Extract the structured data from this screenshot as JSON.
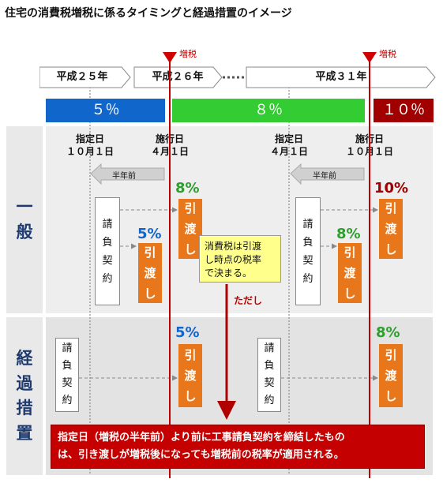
{
  "title": "住宅の消費税増税に係るタイミングと経過措置のイメージ",
  "tax_hike_label": "増税",
  "periods": [
    "平成２５年",
    "平成２６年",
    "平成３１年"
  ],
  "rates": {
    "r5": {
      "label": "５％",
      "color": "#1166cc"
    },
    "r8": {
      "label": "８％",
      "color": "#33cc33"
    },
    "r10": {
      "label": "１０％",
      "color": "#a00000"
    }
  },
  "dates": {
    "designated": "指定日",
    "effective": "施行日",
    "oct1": "１０月１日",
    "apr1": "４月１日"
  },
  "half_year": "半年前",
  "rows": {
    "general": [
      "一",
      "般"
    ],
    "transition": [
      "経",
      "過",
      "措",
      "置"
    ]
  },
  "contract": [
    "請",
    "負",
    "契",
    "約"
  ],
  "delivery": [
    "引",
    "渡",
    "し"
  ],
  "percents": {
    "general_a": "8%",
    "general_b": "5%",
    "general_c": "10%",
    "general_d": "8%",
    "trans_a": "5%",
    "trans_b": "8%"
  },
  "note": [
    "消費税は引渡",
    "し時点の税率",
    "で決まる。"
  ],
  "however": "ただし",
  "explanation": [
    "指定日（増税の半年前）より前に工事請負契約を締結したもの",
    "は、引き渡しが増税後になっても増税前の税率が適用される。"
  ]
}
